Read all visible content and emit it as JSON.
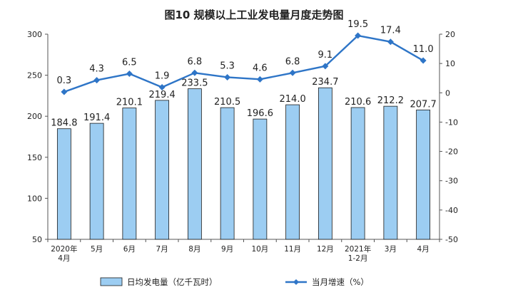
{
  "chart_data": {
    "type": "bar+line",
    "title": "图10  规模以上工业发电量月度走势图",
    "categories": [
      "2020年\n4月",
      "5月",
      "6月",
      "7月",
      "8月",
      "9月",
      "10月",
      "11月",
      "12月",
      "2021年\n1-2月",
      "3月",
      "4月"
    ],
    "series": [
      {
        "name": "日均发电量（亿千瓦时）",
        "type": "bar",
        "axis": "left",
        "color": "#9ccdf2",
        "values": [
          184.8,
          191.4,
          210.1,
          219.4,
          233.5,
          210.5,
          196.6,
          214.0,
          234.7,
          210.6,
          212.2,
          207.7
        ],
        "labels": [
          "184.8",
          "191.4",
          "210.1",
          "219.4",
          "233.5",
          "210.5",
          "196.6",
          "214.0",
          "234.7",
          "210.6",
          "212.2",
          "207.7"
        ]
      },
      {
        "name": "当月增速（%）",
        "type": "line",
        "axis": "right",
        "color": "#2e75c7",
        "values": [
          0.3,
          4.3,
          6.5,
          1.9,
          6.8,
          5.3,
          4.6,
          6.8,
          9.1,
          19.5,
          17.4,
          11.0
        ],
        "labels": [
          "0.3",
          "4.3",
          "6.5",
          "1.9",
          "6.8",
          "5.3",
          "4.6",
          "6.8",
          "9.1",
          "19.5",
          "17.4",
          "11.0"
        ]
      }
    ],
    "left_axis": {
      "ylim": [
        50,
        300
      ],
      "ticks": [
        "50",
        "100",
        "150",
        "200",
        "250",
        "300"
      ]
    },
    "right_axis": {
      "ylim": [
        -50,
        20
      ],
      "ticks": [
        "-50",
        "-40",
        "-30",
        "-20",
        "-10",
        "0",
        "10",
        "20"
      ]
    },
    "legend": {
      "placement": "bottom"
    },
    "grid": false
  }
}
